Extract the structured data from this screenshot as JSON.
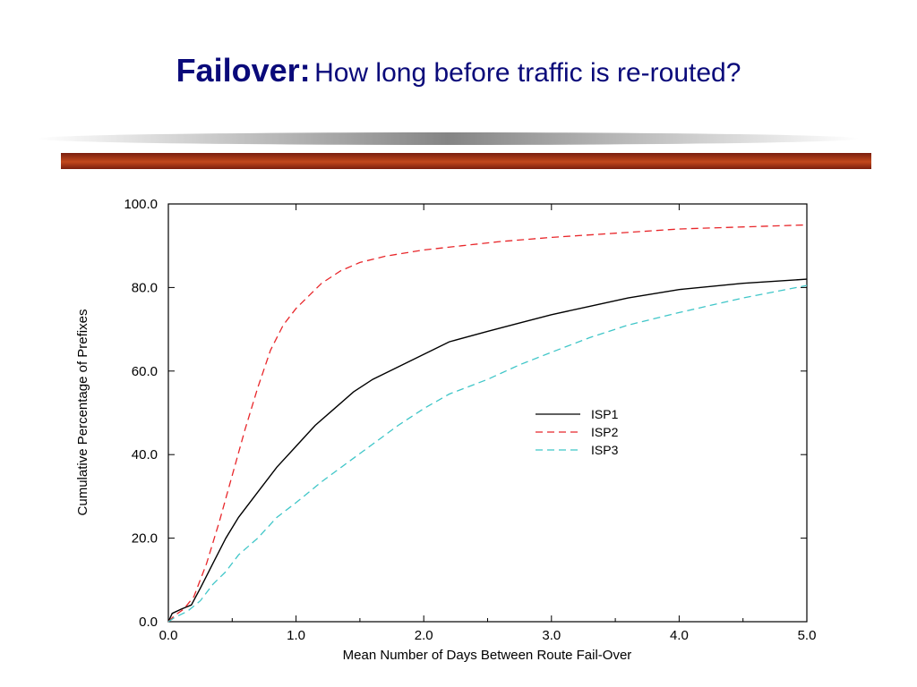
{
  "slide": {
    "title_bold": "Failover:",
    "title_rest": "How long before traffic is re-routed?"
  },
  "colors": {
    "title": "#0a0a7a",
    "bar": "#b4401a",
    "isp1": "#000000",
    "isp2": "#e8262a",
    "isp3": "#3fc6c8"
  },
  "chart_data": {
    "type": "line",
    "xlabel": "Mean Number of Days Between Route Fail-Over",
    "ylabel": "Cumulative Percentage of Prefixes",
    "xlim": [
      0,
      5
    ],
    "ylim": [
      0,
      100
    ],
    "x_ticks": [
      "0.0",
      "1.0",
      "2.0",
      "3.0",
      "4.0",
      "5.0"
    ],
    "y_ticks": [
      "0.0",
      "20.0",
      "40.0",
      "60.0",
      "80.0",
      "100.0"
    ],
    "grid": false,
    "legend_position": "center-right",
    "series": [
      {
        "name": "ISP1",
        "style": "solid",
        "x": [
          0,
          0.03,
          0.1,
          0.18,
          0.25,
          0.35,
          0.45,
          0.55,
          0.7,
          0.85,
          1.0,
          1.15,
          1.3,
          1.45,
          1.6,
          1.8,
          2.0,
          2.2,
          2.5,
          2.75,
          3.0,
          3.3,
          3.6,
          4.0,
          4.5,
          5.0
        ],
        "y": [
          0,
          2,
          3,
          4,
          8,
          14,
          20,
          25,
          31,
          37,
          42,
          47,
          51,
          55,
          58,
          61,
          64,
          67,
          69.5,
          71.5,
          73.5,
          75.5,
          77.5,
          79.5,
          81,
          82
        ]
      },
      {
        "name": "ISP2",
        "style": "dashed",
        "x": [
          0,
          0.05,
          0.12,
          0.2,
          0.3,
          0.4,
          0.5,
          0.6,
          0.7,
          0.8,
          0.9,
          1.0,
          1.1,
          1.2,
          1.35,
          1.5,
          1.7,
          2.0,
          2.3,
          2.6,
          3.0,
          3.5,
          4.0,
          4.5,
          5.0
        ],
        "y": [
          0,
          1.5,
          3,
          6,
          14,
          24,
          35,
          46,
          56,
          65,
          71,
          75,
          78,
          81,
          84,
          86,
          87.5,
          89,
          90,
          91,
          92,
          93,
          94,
          94.5,
          95
        ]
      },
      {
        "name": "ISP3",
        "style": "dashed",
        "x": [
          0,
          0.05,
          0.15,
          0.25,
          0.35,
          0.45,
          0.55,
          0.7,
          0.85,
          1.0,
          1.2,
          1.4,
          1.6,
          1.8,
          2.0,
          2.2,
          2.5,
          2.75,
          3.0,
          3.3,
          3.6,
          4.0,
          4.5,
          5.0
        ],
        "y": [
          0,
          1,
          2.5,
          5,
          9,
          12,
          16,
          20,
          25,
          28.5,
          33.5,
          38,
          42.5,
          47,
          51,
          54.5,
          58,
          61.5,
          64.5,
          68,
          71,
          74,
          77.5,
          80.5
        ]
      }
    ]
  }
}
